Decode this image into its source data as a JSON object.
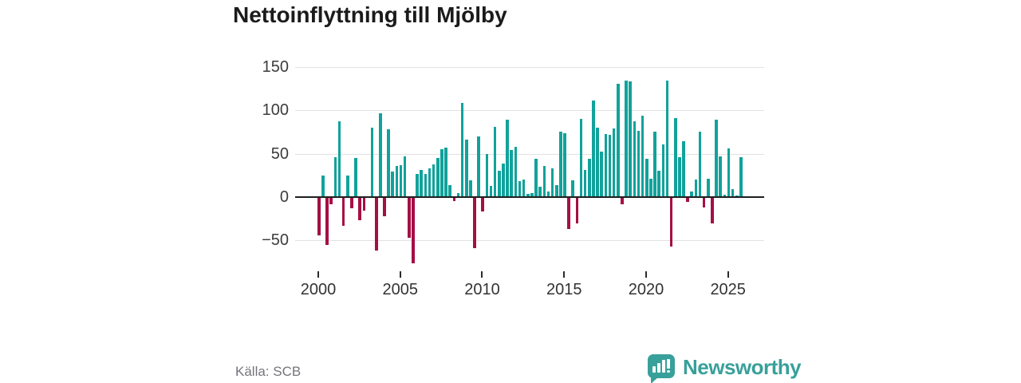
{
  "title": "Nettoinflyttning till Mjölby",
  "source": "Källa: SCB",
  "brand": {
    "name": "Newsworthy",
    "icon": "newsworthy-logo-icon"
  },
  "colors": {
    "positive_bar": "#11a29b",
    "negative_bar": "#a50f45",
    "brand_teal": "#38a09a",
    "axis_line": "#1f1f1f",
    "gridline": "#e2e2e2",
    "title_text": "#1b1b1b",
    "tick_text": "#3c3c3c",
    "source_text": "#74747c",
    "background": "#ffffff"
  },
  "chart_data": {
    "type": "bar",
    "title": "Nettoinflyttning till Mjölby",
    "xlabel": "",
    "ylabel": "",
    "frequency": "quarterly",
    "start_period": "2000Q1",
    "end_period": "2025Q4",
    "x_tick_labels": [
      "2000",
      "2005",
      "2010",
      "2015",
      "2020",
      "2025"
    ],
    "x_tick_years": [
      2000,
      2005,
      2010,
      2015,
      2020,
      2025
    ],
    "y_tick_labels": [
      "150",
      "100",
      "50",
      "0",
      "−50"
    ],
    "y_ticks": [
      150,
      100,
      50,
      0,
      -50
    ],
    "ylim": [
      -85,
      165
    ],
    "grid": "horizontal",
    "legend": "none",
    "series": [
      {
        "name": "Nettoinflyttning per kvartal",
        "values": [
          -43,
          25,
          -54,
          -7,
          46,
          87,
          -32,
          25,
          -12,
          45,
          -26,
          -15,
          0,
          80,
          -61,
          97,
          -21,
          78,
          29,
          36,
          37,
          47,
          -46,
          -75,
          27,
          31,
          27,
          33,
          38,
          45,
          55,
          57,
          14,
          -4,
          5,
          109,
          66,
          19,
          -58,
          70,
          -16,
          50,
          13,
          81,
          30,
          39,
          89,
          54,
          58,
          18,
          20,
          4,
          5,
          44,
          12,
          36,
          6,
          33,
          14,
          75,
          74,
          -36,
          19,
          -29,
          90,
          31,
          44,
          111,
          80,
          52,
          73,
          72,
          79,
          131,
          -7,
          134,
          133,
          87,
          76,
          94,
          44,
          21,
          75,
          30,
          61,
          134,
          -56,
          91,
          46,
          64,
          -5,
          6,
          20,
          75,
          -11,
          21,
          -29,
          89,
          47,
          3,
          56,
          9,
          2,
          46
        ]
      }
    ]
  }
}
